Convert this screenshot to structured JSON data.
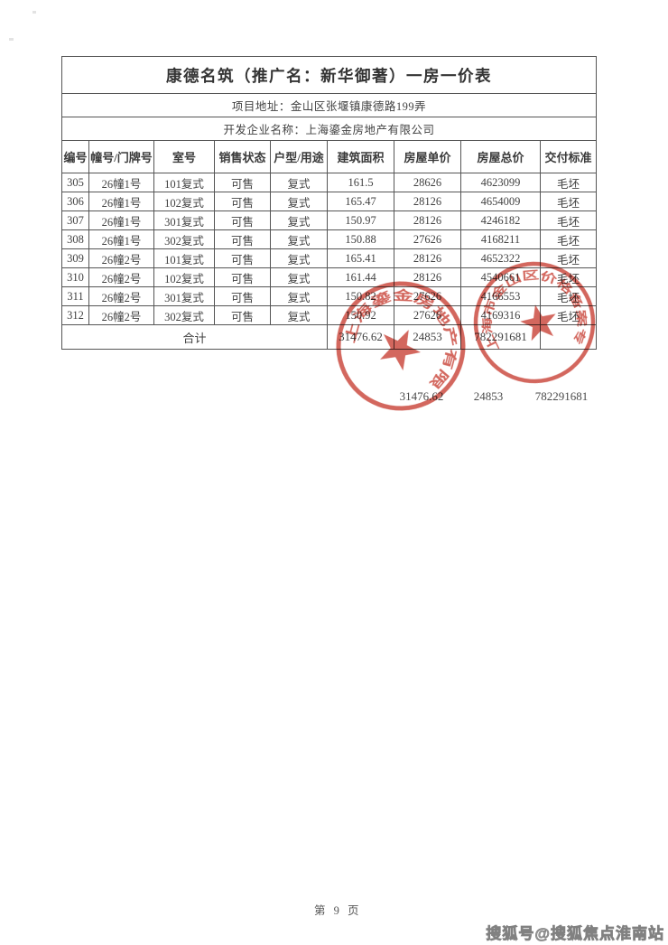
{
  "table": {
    "title": "康德名筑（推广名：新华御著）一房一价表",
    "project_address": "项目地址：金山区张堰镇康德路199弄",
    "developer": "开发企业名称：上海鎏金房地产有限公司",
    "columns": [
      "编号",
      "幢号/门牌号",
      "室号",
      "销售状态",
      "户型/用途",
      "建筑面积",
      "房屋单价",
      "房屋总价",
      "交付标准"
    ],
    "rows": [
      [
        "305",
        "26幢1号",
        "101复式",
        "可售",
        "复式",
        "161.5",
        "28626",
        "4623099",
        "毛坯"
      ],
      [
        "306",
        "26幢1号",
        "102复式",
        "可售",
        "复式",
        "165.47",
        "28126",
        "4654009",
        "毛坯"
      ],
      [
        "307",
        "26幢1号",
        "301复式",
        "可售",
        "复式",
        "150.97",
        "28126",
        "4246182",
        "毛坯"
      ],
      [
        "308",
        "26幢1号",
        "302复式",
        "可售",
        "复式",
        "150.88",
        "27626",
        "4168211",
        "毛坯"
      ],
      [
        "309",
        "26幢2号",
        "101复式",
        "可售",
        "复式",
        "165.41",
        "28126",
        "4652322",
        "毛坯"
      ],
      [
        "310",
        "26幢2号",
        "102复式",
        "可售",
        "复式",
        "161.44",
        "28126",
        "4540661",
        "毛坯"
      ],
      [
        "311",
        "26幢2号",
        "301复式",
        "可售",
        "复式",
        "150.82",
        "27626",
        "4166553",
        "毛坯"
      ],
      [
        "312",
        "26幢2号",
        "302复式",
        "可售",
        "复式",
        "150.92",
        "27626",
        "4169316",
        "毛坯"
      ]
    ],
    "total": {
      "label": "合计",
      "area": "31476.62",
      "unit_price": "24853",
      "total_price": "782291681"
    }
  },
  "echo_totals": {
    "area": "31476.62",
    "unit_price": "24853",
    "total_price": "782291681"
  },
  "stamps": {
    "color": "#c9453a",
    "company_seal_ring_text": "上海鎏金房地产有限公司",
    "filing_seal_ring_text": "上海市金山区价格备案专用章"
  },
  "footer": {
    "page_label": "第 9 页"
  },
  "watermark": {
    "text": "搜狐号@搜狐焦点淮南站"
  }
}
